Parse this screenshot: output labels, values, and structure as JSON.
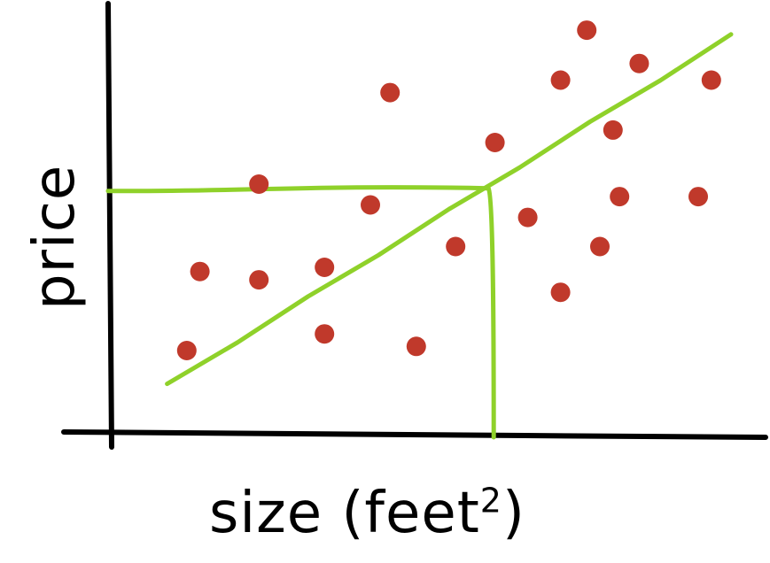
{
  "chart_data": {
    "type": "scatter",
    "title": "",
    "xlabel": "size (feet",
    "xlabel_superscript": "2",
    "xlabel_close": ")",
    "ylabel": "price",
    "xlim": [
      0,
      100
    ],
    "ylim": [
      0,
      100
    ],
    "grid": false,
    "series": [
      {
        "values": [
          {
            "x": 12,
            "y": 20
          },
          {
            "x": 14,
            "y": 39
          },
          {
            "x": 23,
            "y": 37
          },
          {
            "x": 23,
            "y": 60
          },
          {
            "x": 33,
            "y": 40
          },
          {
            "x": 33,
            "y": 24
          },
          {
            "x": 40,
            "y": 55
          },
          {
            "x": 43,
            "y": 82
          },
          {
            "x": 47,
            "y": 21
          },
          {
            "x": 53,
            "y": 45
          },
          {
            "x": 59,
            "y": 70
          },
          {
            "x": 64,
            "y": 52
          },
          {
            "x": 69,
            "y": 85
          },
          {
            "x": 69,
            "y": 34
          },
          {
            "x": 73,
            "y": 97
          },
          {
            "x": 75,
            "y": 45
          },
          {
            "x": 77,
            "y": 73
          },
          {
            "x": 78,
            "y": 57
          },
          {
            "x": 81,
            "y": 89
          },
          {
            "x": 90,
            "y": 57
          },
          {
            "x": 92,
            "y": 85
          }
        ]
      }
    ],
    "fit_line": {
      "x": [
        9,
        95
      ],
      "y": [
        12,
        96
      ]
    },
    "prediction": {
      "x": 58,
      "y": 59
    },
    "colors": {
      "points": "#c0392b",
      "line": "#8fd12a",
      "axes": "#000000"
    }
  }
}
